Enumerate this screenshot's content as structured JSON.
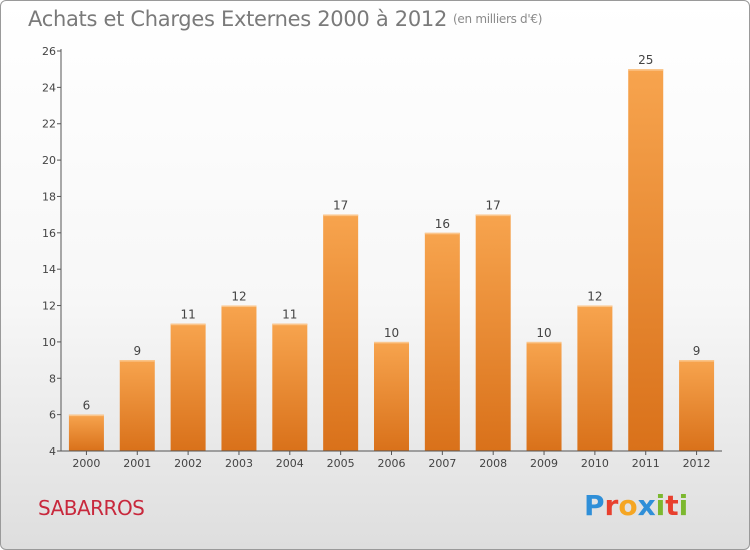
{
  "title": {
    "main": "Achats et Charges Externes 2000 à 2012",
    "unit": "(en milliers d'€)"
  },
  "commune": "SABARROS",
  "logo": {
    "letters": [
      "P",
      "r",
      "o",
      "x",
      "i",
      "t",
      "i"
    ],
    "colors": [
      "#2f8fd8",
      "#e8402e",
      "#f5a623",
      "#2f8fd8",
      "#7cb82f",
      "#e8402e",
      "#7cb82f"
    ]
  },
  "colors": {
    "bar_top": "#f7a44e",
    "bar_bottom": "#d9711a",
    "axis": "#555555",
    "title": "#7a7a7a",
    "commune": "#c8283c"
  },
  "chart_data": {
    "type": "bar",
    "title": "Achats et Charges Externes 2000 à 2012",
    "subtitle": "(en milliers d'€)",
    "xlabel": "",
    "ylabel": "",
    "categories": [
      "2000",
      "2001",
      "2002",
      "2003",
      "2004",
      "2005",
      "2006",
      "2007",
      "2008",
      "2009",
      "2010",
      "2011",
      "2012"
    ],
    "values": [
      6,
      9,
      11,
      12,
      11,
      17,
      10,
      16,
      17,
      10,
      12,
      25,
      9
    ],
    "ylim": [
      4,
      26
    ],
    "yticks": [
      4,
      6,
      8,
      10,
      12,
      14,
      16,
      18,
      20,
      22,
      24,
      26
    ],
    "grid": false,
    "legend": "none"
  }
}
